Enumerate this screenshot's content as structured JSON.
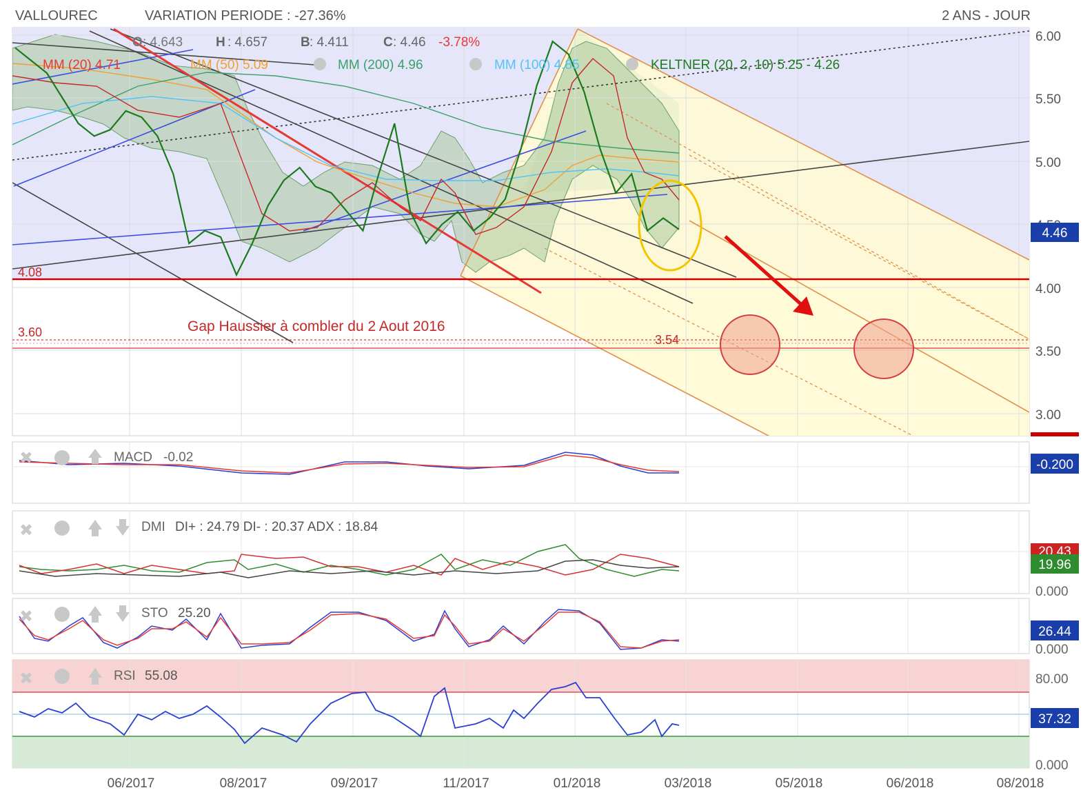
{
  "header": {
    "ticker": "VALLOUREC",
    "variation": "VARIATION PERIODE : -27.36%",
    "period": "2 ANS - JOUR"
  },
  "ohlc": {
    "o_label": "O",
    "o_value": ": 4.643",
    "h_label": "H",
    "h_value": ": 4.657",
    "b_label": "B",
    "b_value": ": 4.411",
    "c_label": "C",
    "c_value": ": 4.46",
    "c_change": "-3.78%"
  },
  "indicators": {
    "mm20": "MM (20) 4.71",
    "mm50": "MM (50) 5.09",
    "mm200": "MM (200)  4.96",
    "mm100": "MM (100) 4.85",
    "keltner": "KELTNER (20, 2, 10)  5.25 - 4.26"
  },
  "annotations": {
    "level_408": "4.08",
    "level_360": "3.60",
    "level_354": "3.54",
    "gap_text": "Gap Haussier à combler du 2 Aout 2016"
  },
  "price_axis": {
    "ticks": [
      "6.00",
      "5.50",
      "5.00",
      "4.50",
      "4.00",
      "3.50",
      "3.00"
    ],
    "current_badge": "4.46"
  },
  "macd": {
    "label": "MACD",
    "value": "-0.02",
    "badge": "-0.200"
  },
  "dmi": {
    "label": "DMI",
    "value": "DI+ : 24.79 DI- : 20.37 ADX : 18.84",
    "badge_red": "20.43",
    "badge_green": "19.96",
    "axis_bottom": "0.000"
  },
  "sto": {
    "label": "STO",
    "value": "25.20",
    "badge": "26.44",
    "axis_bottom": "0.000"
  },
  "rsi": {
    "label": "RSI",
    "value": "55.08",
    "axis_top": "80.00",
    "badge": "37.32",
    "axis_bottom": "0.000"
  },
  "x_axis": {
    "labels": [
      "06/2017",
      "08/2017",
      "09/2017",
      "11/2017",
      "01/2018",
      "03/2018",
      "05/2018",
      "06/2018",
      "08/2018"
    ]
  },
  "colors": {
    "price_bg": "#e6e6fa",
    "channel_yellow": "#fffbd5",
    "keltner_fill": "#a9c9a0",
    "support_red": "#cc0000",
    "ma20": "#e53935",
    "ma50": "#f0a030",
    "ma200": "#3aa06a",
    "ma100": "#4fc3f7",
    "badge_blue": "#1a3faa",
    "badge_green": "#2e8b2e"
  },
  "chart_data": {
    "type": "line",
    "title": "VALLOUREC",
    "ylim": [
      2.95,
      6.05
    ],
    "x_labels": [
      "06/2017",
      "08/2017",
      "09/2017",
      "11/2017",
      "01/2018",
      "03/2018",
      "05/2018",
      "06/2018",
      "08/2018"
    ],
    "series": [
      {
        "name": "close",
        "values": [
          5.9,
          5.8,
          5.7,
          5.5,
          5.3,
          5.2,
          5.25,
          5.4,
          5.35,
          5.2,
          4.9,
          4.35,
          4.45,
          4.4,
          4.1,
          4.35,
          4.65,
          4.85,
          4.95,
          4.8,
          4.75,
          4.6,
          4.45,
          4.9,
          5.3,
          4.6,
          4.35,
          4.5,
          4.6,
          4.45,
          4.55,
          4.7,
          5.1,
          5.6,
          5.95,
          5.85,
          5.55,
          5.1,
          4.75,
          4.9,
          4.45,
          4.55,
          4.46
        ]
      }
    ],
    "levels": {
      "support": 4.08,
      "gap_low": 3.54,
      "gap_high": 3.6,
      "last": 4.46
    },
    "panels": {
      "MACD": -0.02,
      "DMI": {
        "di_plus": 24.79,
        "di_minus": 20.37,
        "adx": 18.84
      },
      "STO": 25.2,
      "RSI": 55.08
    }
  }
}
